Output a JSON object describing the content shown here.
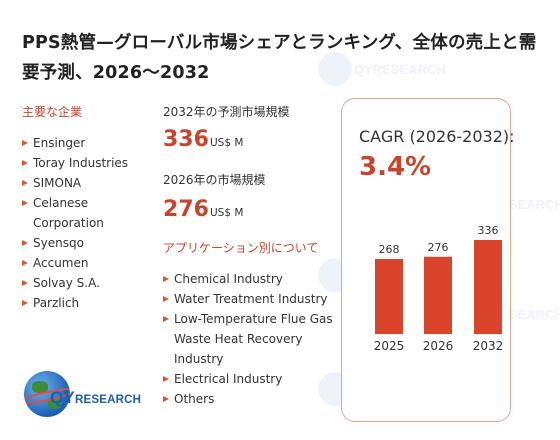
{
  "title": "PPS熱管—グローバル市場シェアとランキング、全体の売上と需要予測、2026～2032",
  "companies": {
    "heading": "主要な企業",
    "items": [
      "Ensinger",
      "Toray Industries",
      "SIMONA",
      "Celanese Corporation",
      "Syensqo",
      "Accumen",
      "Solvay S.A.",
      "Parzlich"
    ]
  },
  "market": {
    "forecast_label": "2032年の予測市場規模",
    "forecast_value": "336",
    "forecast_unit": "US$ M",
    "current_label": "2026年の市場規模",
    "current_value": "276",
    "current_unit": "US$ M"
  },
  "applications": {
    "heading": "アプリケーション別について",
    "items": [
      "Chemical Industry",
      "Water Treatment Industry",
      "Low-Temperature Flue Gas Waste Heat Recovery Industry",
      "Electrical Industry",
      "Others"
    ]
  },
  "cagr": {
    "label": "CAGR (2026-2032):",
    "value": "3.4%"
  },
  "logo": {
    "text": "QYRESEARCH"
  },
  "watermark_text": "QYRESEARCH",
  "chart_data": {
    "type": "bar",
    "categories": [
      "2025",
      "2026",
      "2032"
    ],
    "values": [
      268,
      276,
      336
    ],
    "title": "",
    "xlabel": "",
    "ylabel": "",
    "bar_color": "#d9452b",
    "ylim": [
      0,
      336
    ],
    "grid": false
  }
}
